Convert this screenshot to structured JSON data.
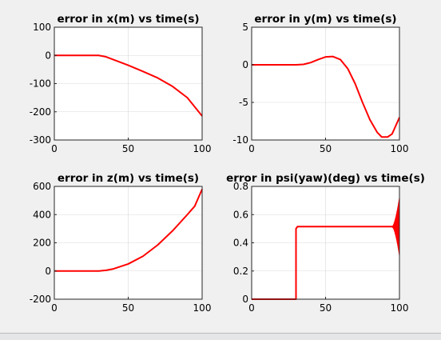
{
  "colors": {
    "background": "#f0f0f0",
    "axes_bg": "#ffffff",
    "line": "#ff0000",
    "grid": "#d9d9d9",
    "text": "#000000"
  },
  "chart_data": [
    {
      "type": "line",
      "title": "error in x(m) vs time(s)",
      "xlabel": "",
      "ylabel": "",
      "xlim": [
        0,
        100
      ],
      "ylim": [
        -300,
        100
      ],
      "xticks": [
        0,
        50,
        100
      ],
      "yticks": [
        -300,
        -200,
        -100,
        0,
        100
      ],
      "grid": true,
      "series": [
        {
          "x": [
            0,
            10,
            20,
            30,
            35,
            40,
            50,
            60,
            70,
            80,
            90,
            100
          ],
          "y": [
            0,
            0,
            0,
            0,
            -5,
            -15,
            -35,
            -57,
            -80,
            -110,
            -150,
            -215
          ]
        }
      ]
    },
    {
      "type": "line",
      "title": "error in y(m) vs time(s)",
      "xlabel": "",
      "ylabel": "",
      "xlim": [
        0,
        100
      ],
      "ylim": [
        -10,
        5
      ],
      "xticks": [
        0,
        50,
        100
      ],
      "yticks": [
        -10,
        -5,
        0,
        5
      ],
      "grid": true,
      "series": [
        {
          "x": [
            0,
            10,
            20,
            30,
            35,
            40,
            45,
            50,
            55,
            60,
            65,
            70,
            75,
            80,
            85,
            88,
            92,
            95,
            100
          ],
          "y": [
            0,
            0,
            0,
            0,
            0.05,
            0.3,
            0.7,
            1.05,
            1.1,
            0.7,
            -0.5,
            -2.5,
            -5,
            -7.3,
            -9.0,
            -9.6,
            -9.6,
            -9.2,
            -7.0
          ]
        }
      ]
    },
    {
      "type": "line",
      "title": "error in z(m) vs time(s)",
      "xlabel": "",
      "ylabel": "",
      "xlim": [
        0,
        100
      ],
      "ylim": [
        -200,
        600
      ],
      "xticks": [
        0,
        50,
        100
      ],
      "yticks": [
        -200,
        0,
        200,
        400,
        600
      ],
      "grid": true,
      "series": [
        {
          "x": [
            0,
            10,
            20,
            30,
            35,
            40,
            50,
            60,
            70,
            80,
            90,
            95,
            100
          ],
          "y": [
            0,
            0,
            0,
            0,
            5,
            15,
            50,
            105,
            185,
            285,
            400,
            460,
            580
          ]
        }
      ]
    },
    {
      "type": "line",
      "title": "error in psi(yaw)(deg) vs time(s)",
      "xlabel": "",
      "ylabel": "",
      "xlim": [
        0,
        100
      ],
      "ylim": [
        0,
        0.8
      ],
      "xticks": [
        0,
        50,
        100
      ],
      "yticks": [
        0,
        0.2,
        0.4,
        0.6,
        0.8
      ],
      "grid": true,
      "series": [
        {
          "x": [
            0,
            30,
            30,
            31,
            95,
            100
          ],
          "y": [
            0,
            0,
            0.5,
            0.515,
            0.515,
            0.515
          ]
        }
      ],
      "oscillation": {
        "x_start": 95,
        "x_end": 100,
        "center": 0.515,
        "amplitude_end": 0.21
      }
    }
  ]
}
